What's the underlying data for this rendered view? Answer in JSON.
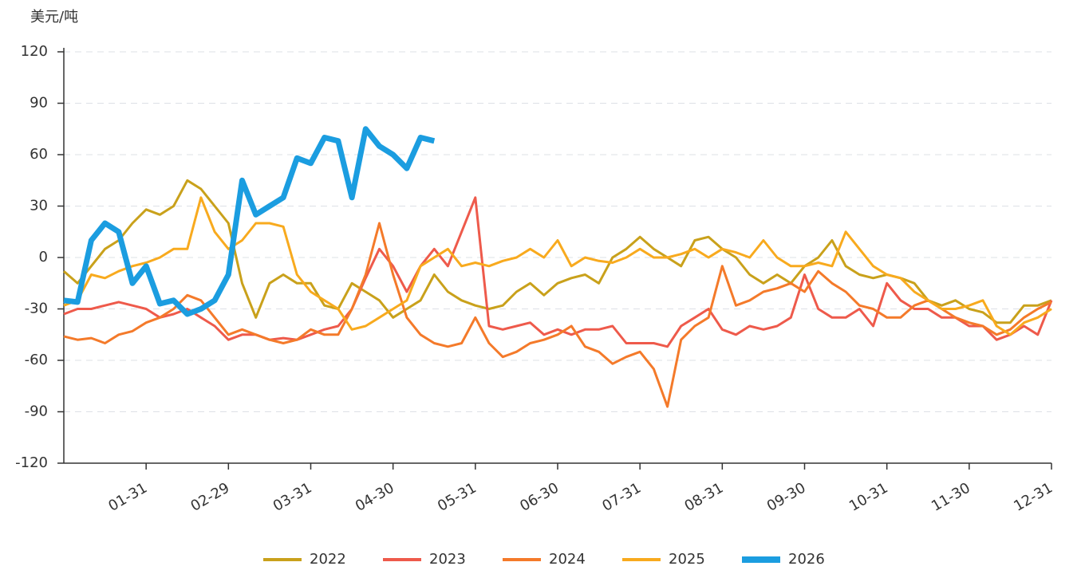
{
  "chart_data": {
    "type": "line",
    "y_label": "美元/吨",
    "categories": [
      null,
      null,
      null,
      null,
      null,
      null,
      "01-31",
      null,
      null,
      null,
      null,
      null,
      "02-29",
      null,
      null,
      null,
      null,
      null,
      "03-31",
      null,
      null,
      null,
      null,
      null,
      "04-30",
      null,
      null,
      null,
      null,
      null,
      "05-31",
      null,
      null,
      null,
      null,
      null,
      "06-30",
      null,
      null,
      null,
      null,
      null,
      "07-31",
      null,
      null,
      null,
      null,
      null,
      "08-31",
      null,
      null,
      null,
      null,
      null,
      "09-30",
      null,
      null,
      null,
      null,
      null,
      "10-31",
      null,
      null,
      null,
      null,
      null,
      "11-30",
      null,
      null,
      null,
      null,
      null,
      "12-31"
    ],
    "ylim": [
      -120,
      120
    ],
    "yticks": [
      -120,
      -90,
      -60,
      -30,
      0,
      30,
      60,
      90,
      120
    ],
    "grid": true,
    "series": [
      {
        "name": "2022",
        "color": "#c9a11b",
        "line_width": 3,
        "values": [
          -8,
          -15,
          -5,
          5,
          10,
          20,
          28,
          25,
          30,
          45,
          40,
          30,
          20,
          -15,
          -35,
          -15,
          -10,
          -15,
          -15,
          -28,
          -30,
          -15,
          -20,
          -25,
          -35,
          -30,
          -25,
          -10,
          -20,
          -25,
          -28,
          -30,
          -28,
          -20,
          -15,
          -22,
          -15,
          -12,
          -10,
          -15,
          0,
          5,
          12,
          5,
          0,
          -5,
          10,
          12,
          5,
          0,
          -10,
          -15,
          -10,
          -15,
          -5,
          0,
          10,
          -5,
          -10,
          -12,
          -10,
          -12,
          -15,
          -25,
          -28,
          -25,
          -30,
          -32,
          -38,
          -38,
          -28,
          -28,
          -25
        ]
      },
      {
        "name": "2023",
        "color": "#ee5a4b",
        "line_width": 3,
        "values": [
          -33,
          -30,
          -30,
          -28,
          -26,
          -28,
          -30,
          -35,
          -33,
          -30,
          -35,
          -40,
          -48,
          -45,
          -45,
          -48,
          -47,
          -48,
          -45,
          -42,
          -40,
          -30,
          -12,
          5,
          -5,
          -20,
          -5,
          5,
          -5,
          15,
          35,
          -40,
          -42,
          -40,
          -38,
          -45,
          -42,
          -45,
          -42,
          -42,
          -40,
          -50,
          -50,
          -50,
          -52,
          -40,
          -35,
          -30,
          -42,
          -45,
          -40,
          -42,
          -40,
          -35,
          -10,
          -30,
          -35,
          -35,
          -30,
          -40,
          -15,
          -25,
          -30,
          -30,
          -35,
          -35,
          -40,
          -40,
          -48,
          -45,
          -40,
          -45,
          -25
        ]
      },
      {
        "name": "2024",
        "color": "#f47a2a",
        "line_width": 3,
        "values": [
          -46,
          -48,
          -47,
          -50,
          -45,
          -43,
          -38,
          -35,
          -30,
          -22,
          -25,
          -35,
          -45,
          -42,
          -45,
          -48,
          -50,
          -48,
          -42,
          -45,
          -45,
          -30,
          -10,
          20,
          -10,
          -35,
          -45,
          -50,
          -52,
          -50,
          -35,
          -50,
          -58,
          -55,
          -50,
          -48,
          -45,
          -40,
          -52,
          -55,
          -62,
          -58,
          -55,
          -65,
          -87,
          -48,
          -40,
          -35,
          -5,
          -28,
          -25,
          -20,
          -18,
          -15,
          -20,
          -8,
          -15,
          -20,
          -28,
          -30,
          -35,
          -35,
          -28,
          -25,
          -30,
          -35,
          -38,
          -40,
          -45,
          -42,
          -35,
          -30,
          -26
        ]
      },
      {
        "name": "2025",
        "color": "#f8aa1e",
        "line_width": 3,
        "values": [
          -28,
          -25,
          -10,
          -12,
          -8,
          -5,
          -3,
          0,
          5,
          5,
          35,
          15,
          5,
          10,
          20,
          20,
          18,
          -10,
          -20,
          -25,
          -30,
          -42,
          -40,
          -35,
          -30,
          -25,
          -5,
          0,
          5,
          -5,
          -3,
          -5,
          -2,
          0,
          5,
          0,
          10,
          -5,
          0,
          -2,
          -3,
          0,
          5,
          0,
          0,
          2,
          5,
          0,
          5,
          3,
          0,
          10,
          0,
          -5,
          -5,
          -3,
          -5,
          15,
          5,
          -5,
          -10,
          -12,
          -20,
          -25,
          -30,
          -30,
          -28,
          -25,
          -40,
          -45,
          -38,
          -35,
          -30
        ]
      },
      {
        "name": "2026",
        "color": "#1b9de0",
        "line_width": 7,
        "values": [
          -25,
          -26,
          10,
          20,
          15,
          -15,
          -5,
          -27,
          -25,
          -33,
          -30,
          -25,
          -10,
          45,
          25,
          30,
          35,
          58,
          55,
          70,
          68,
          35,
          75,
          65,
          60,
          52,
          70,
          68,
          null,
          null,
          null,
          null,
          null,
          null,
          null,
          null,
          null,
          null,
          null,
          null,
          null,
          null,
          null,
          null,
          null,
          null,
          null,
          null,
          null,
          null,
          null,
          null,
          null,
          null,
          null,
          null,
          null,
          null,
          null,
          null,
          null,
          null,
          null,
          null,
          null,
          null,
          null,
          null,
          null,
          null,
          null,
          null,
          null
        ]
      }
    ]
  }
}
